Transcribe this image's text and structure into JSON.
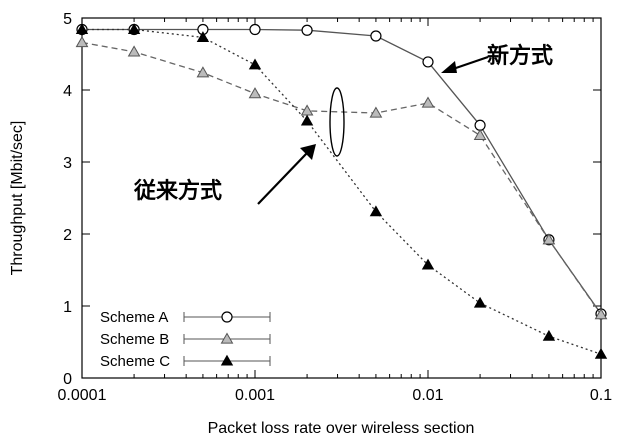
{
  "chart_data": {
    "type": "line",
    "xscale": "log",
    "xlim": [
      0.0001,
      0.1
    ],
    "ylim": [
      0,
      5
    ],
    "xlabel": "Packet loss rate over wireless section",
    "ylabel": "Throughput [Mbit/sec]",
    "xticks": [
      "0.0001",
      "0.001",
      "0.01",
      "0.1"
    ],
    "yticks": [
      "0",
      "1",
      "2",
      "3",
      "4",
      "5"
    ],
    "grid": false,
    "legend_position": "bottom-left",
    "series": [
      {
        "name": "Scheme A",
        "marker": "circle-open",
        "line": "solid",
        "x": [
          0.0001,
          0.0002,
          0.0005,
          0.001,
          0.002,
          0.005,
          0.01,
          0.02,
          0.05,
          0.1
        ],
        "y": [
          4.84,
          4.84,
          4.84,
          4.84,
          4.83,
          4.75,
          4.39,
          3.51,
          1.92,
          0.89
        ]
      },
      {
        "name": "Scheme B",
        "marker": "triangle-open",
        "line": "dashed",
        "x": [
          0.0001,
          0.0002,
          0.0005,
          0.001,
          0.002,
          0.005,
          0.01,
          0.02,
          0.05,
          0.1
        ],
        "y": [
          4.66,
          4.53,
          4.24,
          3.95,
          3.71,
          3.68,
          3.82,
          3.37,
          1.92,
          0.88
        ]
      },
      {
        "name": "Scheme C",
        "marker": "triangle-filled",
        "line": "dotted",
        "x": [
          0.0001,
          0.0002,
          0.0005,
          0.001,
          0.002,
          0.005,
          0.01,
          0.02,
          0.05,
          0.1
        ],
        "y": [
          4.84,
          4.84,
          4.73,
          4.35,
          3.57,
          2.31,
          1.57,
          1.04,
          0.58,
          0.33
        ]
      }
    ],
    "annotations": [
      "新方式",
      "従来方式"
    ]
  }
}
